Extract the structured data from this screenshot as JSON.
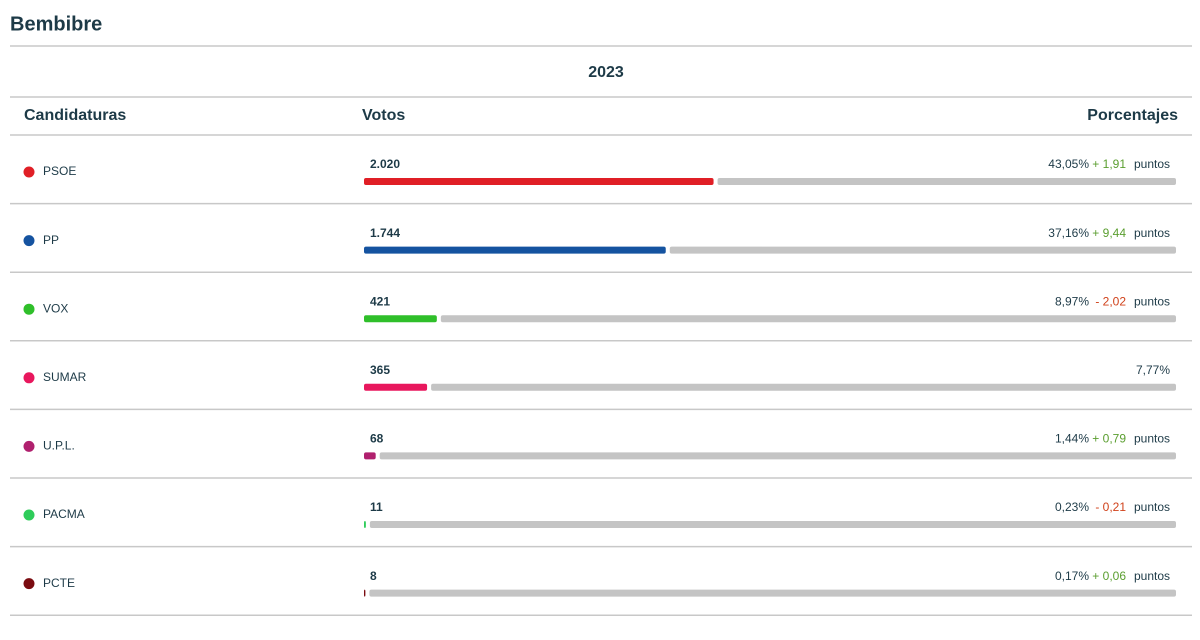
{
  "header": {
    "title": "Bembibre",
    "year": "2023"
  },
  "columns": [
    "Candidaturas",
    "Votos",
    "Porcentajes"
  ],
  "change_unit": "puntos",
  "rows": [
    {
      "party": "PSOE",
      "color": "#e01f26",
      "votes": 2020,
      "votes_label": "2.020",
      "percent": 43.05,
      "percent_label": "43,05%",
      "change": 1.91,
      "change_label": "+ 1,91"
    },
    {
      "party": "PP",
      "color": "#1553a0",
      "votes": 1744,
      "votes_label": "1.744",
      "percent": 37.16,
      "percent_label": "37,16%",
      "change": 9.44,
      "change_label": "+ 9,44"
    },
    {
      "party": "VOX",
      "color": "#2fbf2a",
      "votes": 421,
      "percent": 8.97,
      "percent_label": "8,97%",
      "change": -2.02,
      "change_label": "- 2,02"
    },
    {
      "party": "SUMAR",
      "color": "#e8175d",
      "votes": 365,
      "percent": 7.77,
      "percent_label": "7,77%",
      "change": null
    },
    {
      "party": "U.P.L.",
      "color": "#b0206e",
      "votes": 68,
      "percent": 1.44,
      "percent_label": "1,44%",
      "change": 0.79,
      "change_label": "+ 0,79"
    },
    {
      "party": "PACMA",
      "color": "#2ecc5a",
      "votes": 11,
      "percent": 0.23,
      "percent_label": "0,23%",
      "change": -0.21,
      "change_label": "- 0,21"
    },
    {
      "party": "PCTE",
      "color": "#7a0b10",
      "votes": 8,
      "percent": 0.17,
      "percent_label": "0,17%",
      "change": 0.06,
      "change_label": "+ 0,06"
    }
  ]
}
